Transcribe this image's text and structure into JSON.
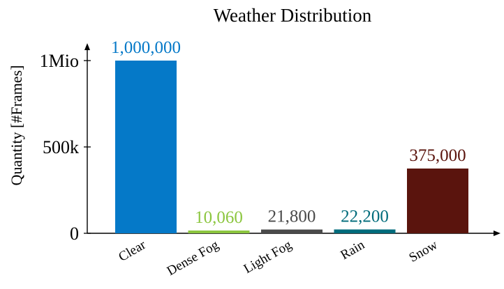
{
  "chart_data": {
    "type": "bar",
    "title": "Weather Distribution",
    "xlabel": "",
    "ylabel": "Quantity [#Frames]",
    "categories": [
      "Clear",
      "Dense Fog",
      "Light Fog",
      "Rain",
      "Snow"
    ],
    "values": [
      1000000,
      10060,
      21800,
      22200,
      375000
    ],
    "value_labels": [
      "1,000,000",
      "10,060",
      "21,800",
      "22,200",
      "375,000"
    ],
    "colors": [
      "#0579c8",
      "#8cc63f",
      "#4a4a4a",
      "#006b7b",
      "#5a140d"
    ],
    "y_ticks": [
      {
        "value": 0,
        "label": "0"
      },
      {
        "value": 500000,
        "label": "500k"
      },
      {
        "value": 1000000,
        "label": "1Mio"
      }
    ],
    "ylim": [
      0,
      1000000
    ],
    "grid": false,
    "legend": "none"
  }
}
